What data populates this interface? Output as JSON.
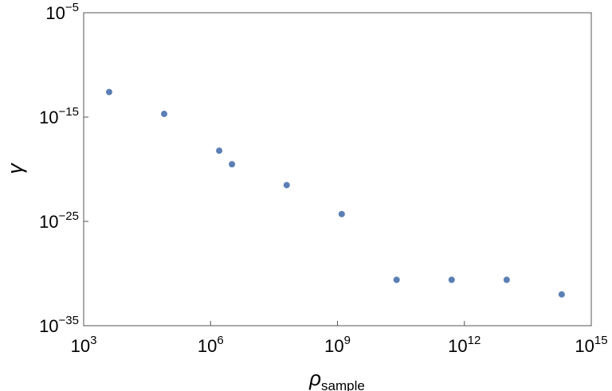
{
  "chart_data": {
    "type": "scatter",
    "title": "",
    "xlabel": "ρ",
    "xlabel_subscript": "sample",
    "ylabel": "γ",
    "xscale": "log",
    "yscale": "log",
    "xlim": [
      1000.0,
      1000000000000000.0
    ],
    "ylim": [
      1e-35,
      1e-05
    ],
    "x_ticks": [
      {
        "value": 1000.0,
        "base": "10",
        "exp": "3"
      },
      {
        "value": 1000000.0,
        "base": "10",
        "exp": "6"
      },
      {
        "value": 1000000000.0,
        "base": "10",
        "exp": "9"
      },
      {
        "value": 1000000000000.0,
        "base": "10",
        "exp": "12"
      },
      {
        "value": 1000000000000000.0,
        "base": "10",
        "exp": "15"
      }
    ],
    "y_ticks": [
      {
        "value": 1e-35,
        "base": "10",
        "exp": "−35"
      },
      {
        "value": 1e-25,
        "base": "10",
        "exp": "−25"
      },
      {
        "value": 1e-15,
        "base": "10",
        "exp": "−15"
      },
      {
        "value": 1e-05,
        "base": "10",
        "exp": "−5"
      }
    ],
    "grid": false,
    "marker_color": "#5b7fb5",
    "series": [
      {
        "points": [
          {
            "x": 4000.0,
            "y": 2.5e-13
          },
          {
            "x": 80000.0,
            "y": 2e-15
          },
          {
            "x": 1600000.0,
            "y": 6e-19
          },
          {
            "x": 3200000.0,
            "y": 3e-20
          },
          {
            "x": 63000000.0,
            "y": 3e-22
          },
          {
            "x": 1260000000.0,
            "y": 5e-25
          },
          {
            "x": 25000000000.0,
            "y": 2.5e-31
          },
          {
            "x": 500000000000.0,
            "y": 2.5e-31
          },
          {
            "x": 10000000000000.0,
            "y": 2.5e-31
          },
          {
            "x": 200000000000000.0,
            "y": 1e-32
          }
        ]
      }
    ]
  }
}
